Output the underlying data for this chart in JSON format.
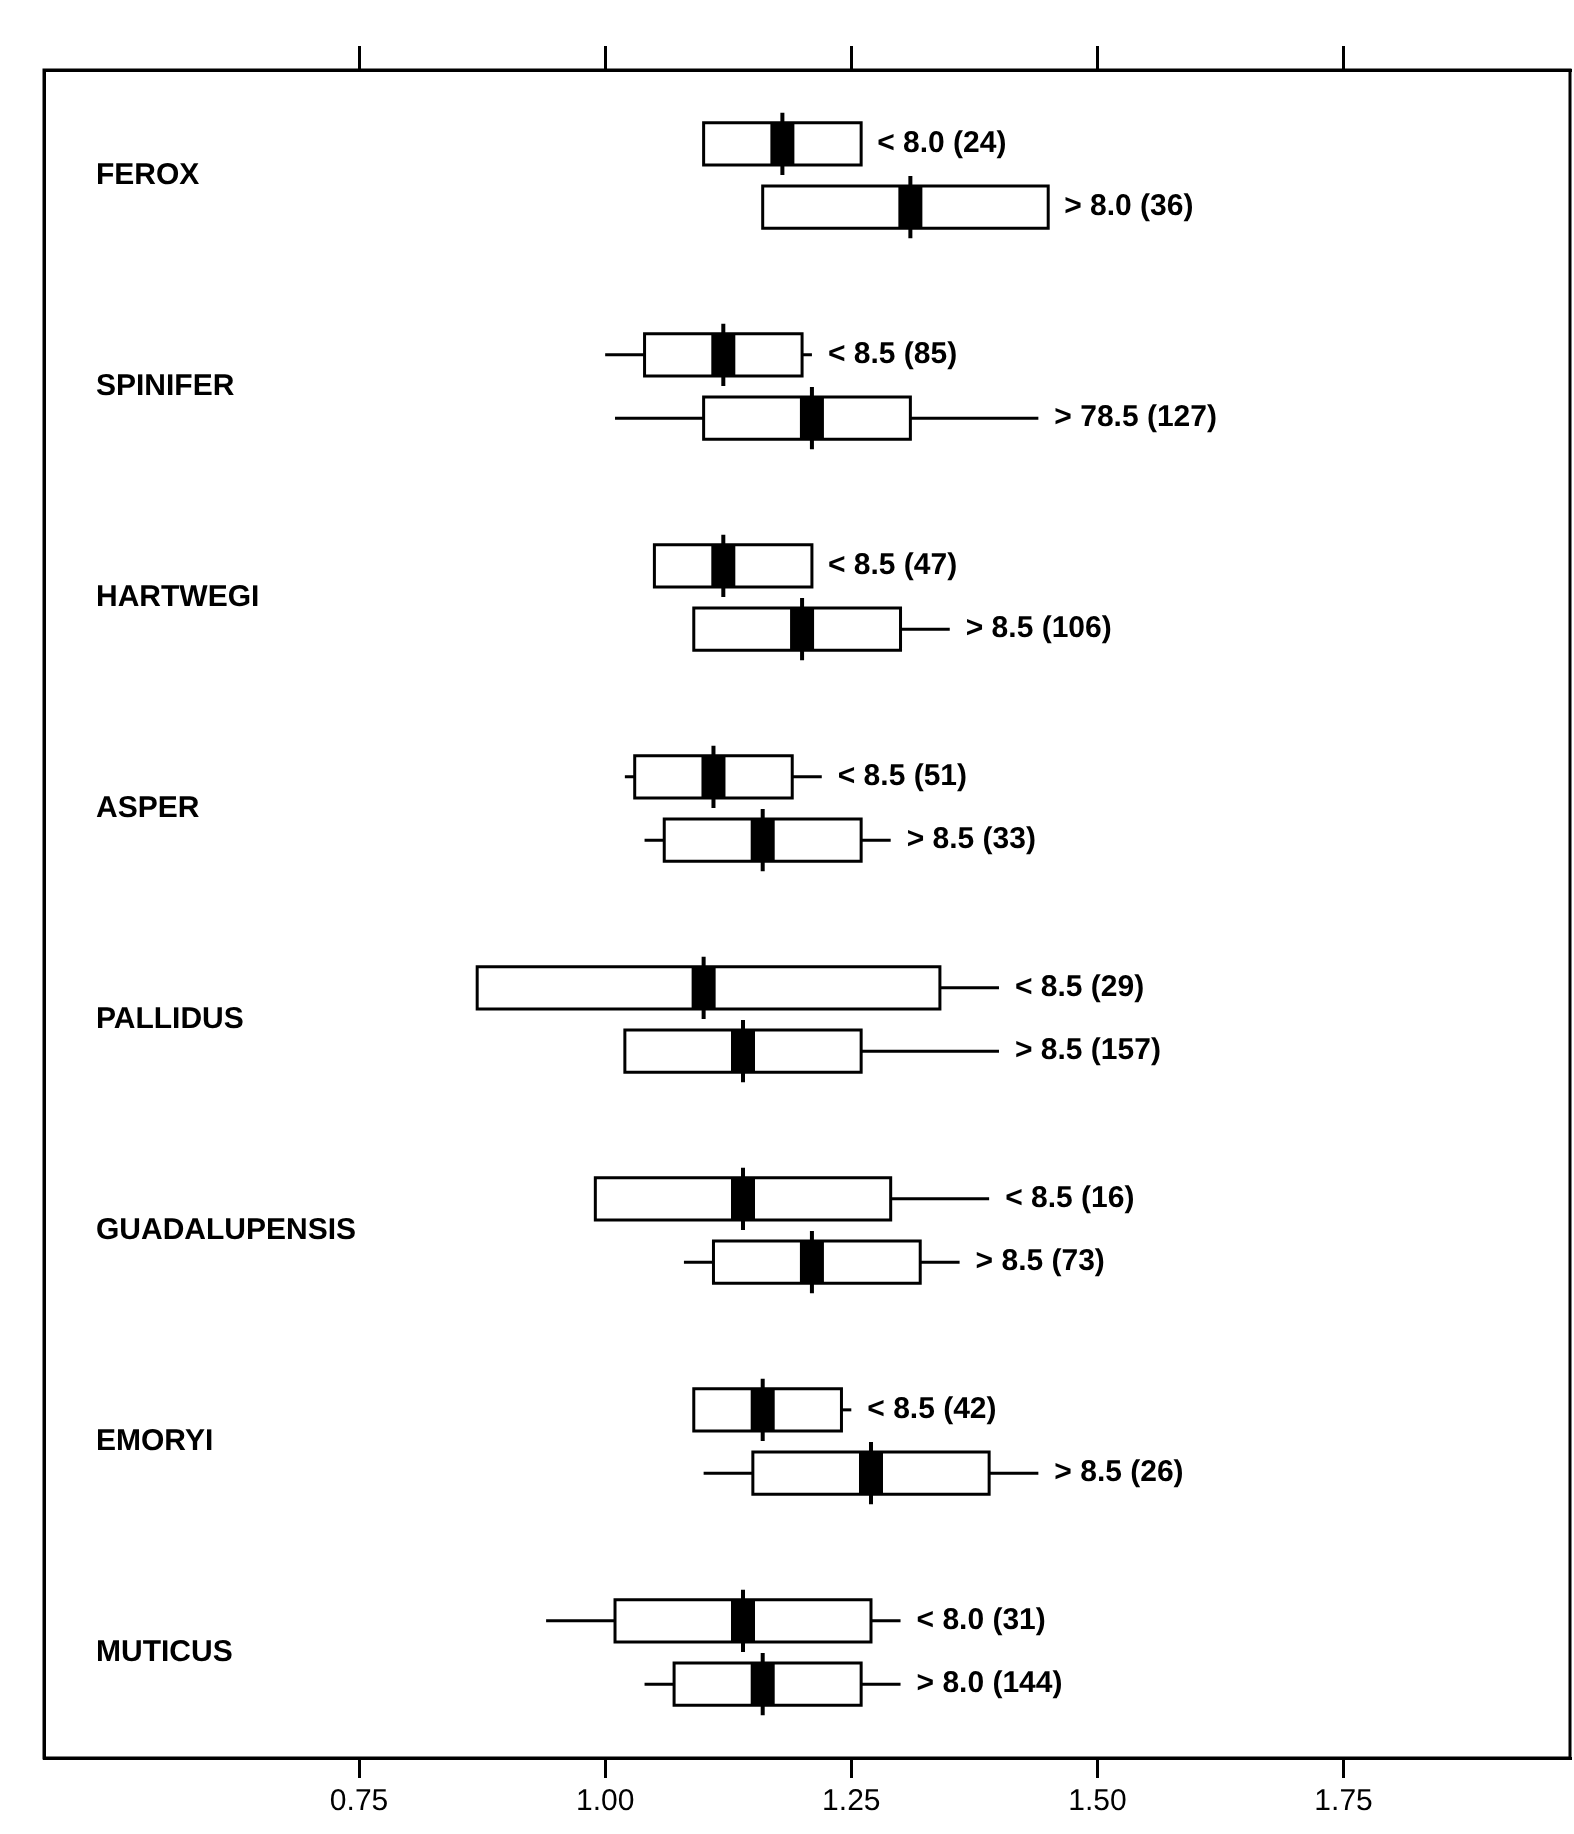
{
  "chart_data": {
    "type": "box",
    "orientation": "horizontal",
    "categories": [
      "FEROX",
      "SPINIFER",
      "HARTWEGI",
      "ASPER",
      "PALLIDUS",
      "GUADALUPENSIS",
      "EMORYI",
      "MUTICUS"
    ],
    "series": [
      {
        "color": "#000000",
        "boxes": [
          {
            "low": 1.1,
            "q1": 1.1,
            "median": 1.18,
            "q3": 1.26,
            "high": 1.26
          },
          {
            "low": 1.0,
            "q1": 1.04,
            "median": 1.12,
            "q3": 1.2,
            "high": 1.21
          },
          {
            "low": 1.05,
            "q1": 1.05,
            "median": 1.12,
            "q3": 1.21,
            "high": 1.21
          },
          {
            "low": 1.02,
            "q1": 1.03,
            "median": 1.11,
            "q3": 1.19,
            "high": 1.22
          },
          {
            "low": 0.87,
            "q1": 0.87,
            "median": 1.1,
            "q3": 1.34,
            "high": 1.4
          },
          {
            "low": 0.99,
            "q1": 0.99,
            "median": 1.14,
            "q3": 1.29,
            "high": 1.39
          },
          {
            "low": 1.09,
            "q1": 1.09,
            "median": 1.16,
            "q3": 1.24,
            "high": 1.25
          },
          {
            "low": 0.94,
            "q1": 1.01,
            "median": 1.14,
            "q3": 1.27,
            "high": 1.3
          }
        ],
        "value_labels": [
          "< 8.0 (24)",
          "< 8.5 (85)",
          "< 8.5 (47)",
          "< 8.5 (51)",
          "< 8.5 (29)",
          "< 8.5 (16)",
          "< 8.5 (42)",
          "< 8.0 (31)"
        ]
      },
      {
        "color": "#000000",
        "boxes": [
          {
            "low": 1.16,
            "q1": 1.16,
            "median": 1.31,
            "q3": 1.45,
            "high": 1.45
          },
          {
            "low": 1.01,
            "q1": 1.1,
            "median": 1.21,
            "q3": 1.31,
            "high": 1.44
          },
          {
            "low": 1.09,
            "q1": 1.09,
            "median": 1.2,
            "q3": 1.3,
            "high": 1.35
          },
          {
            "low": 1.04,
            "q1": 1.06,
            "median": 1.16,
            "q3": 1.26,
            "high": 1.29
          },
          {
            "low": 1.02,
            "q1": 1.02,
            "median": 1.14,
            "q3": 1.26,
            "high": 1.4
          },
          {
            "low": 1.08,
            "q1": 1.11,
            "median": 1.21,
            "q3": 1.32,
            "high": 1.36
          },
          {
            "low": 1.1,
            "q1": 1.15,
            "median": 1.27,
            "q3": 1.39,
            "high": 1.44
          },
          {
            "low": 1.04,
            "q1": 1.07,
            "median": 1.16,
            "q3": 1.26,
            "high": 1.3
          }
        ],
        "value_labels": [
          "> 8.0 (36)",
          "> 78.5 (127)",
          "> 8.5 (106)",
          "> 8.5 (33)",
          "> 8.5 (157)",
          "> 8.5 (73)",
          "> 8.5 (26)",
          "> 8.0 (144)"
        ]
      }
    ],
    "xlim": [
      0.43,
      1.98
    ],
    "xticks": [
      {
        "value": 0.75,
        "label": "0.75"
      },
      {
        "value": 1,
        "label": "1.00"
      },
      {
        "value": 1.25,
        "label": "1.25"
      },
      {
        "value": 1.5,
        "label": "1.50"
      },
      {
        "value": 1.75,
        "label": "1.75"
      }
    ],
    "grid": false,
    "legend": false
  }
}
